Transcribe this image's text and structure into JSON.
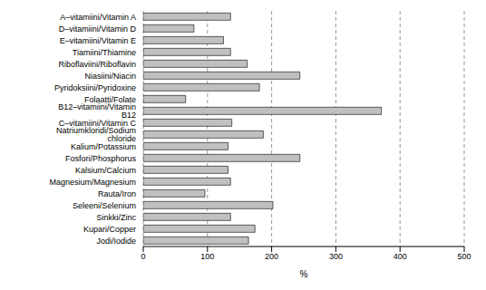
{
  "chart_data": {
    "type": "bar",
    "orientation": "horizontal",
    "categories": [
      "A–vitamiini/Vitamin A",
      "D–vitamiini/Vitamin D",
      "E–vitamiini/Vitamin E",
      "Tiamiini/Thiamine",
      "Riboflaviini/Riboflavin",
      "Niasiini/Niacin",
      "Pyridoksiini/Pyridoxine",
      "Folaatti/Folate",
      "B12–vitamiini/Vitamin B12",
      "C–vitamiini/Vitamin C",
      "Natriumkloridi/Sodium chloride",
      "Kalium/Potassium",
      "Fosfori/Phosphorus",
      "Kalsium/Calcium",
      "Magnesium/Magnesium",
      "Rauta/Iron",
      "Seleeni/Selenium",
      "Sinkki/Zinc",
      "Kupari/Copper",
      "Jodi/Iodide"
    ],
    "values": [
      136,
      79,
      125,
      136,
      162,
      244,
      181,
      66,
      371,
      138,
      187,
      132,
      244,
      132,
      136,
      96,
      202,
      136,
      174,
      164
    ],
    "color": "#c0c0c0",
    "xlabel": "%",
    "xlim": [
      0,
      500
    ],
    "xticks": [
      0,
      100,
      200,
      300,
      400,
      500
    ],
    "grid": true
  }
}
